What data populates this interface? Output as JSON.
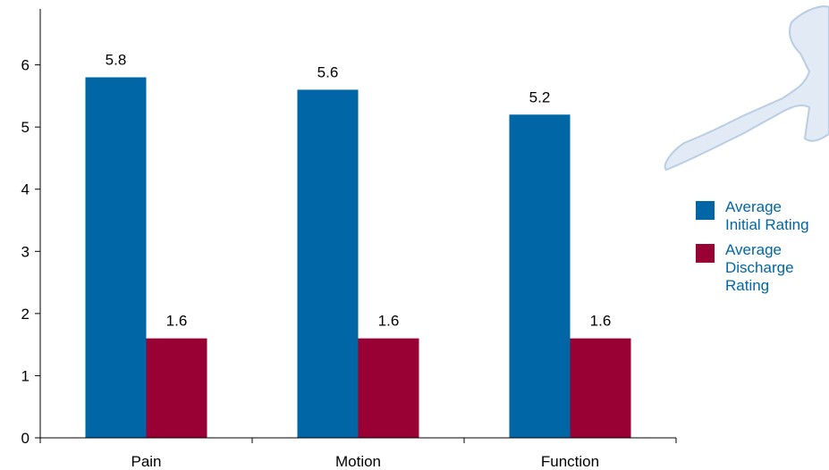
{
  "chart_data": {
    "type": "bar",
    "categories": [
      "Pain",
      "Motion",
      "Function"
    ],
    "series": [
      {
        "name": "Average\nInitial Rating",
        "color": "#0066a6",
        "values": [
          5.8,
          5.6,
          5.2
        ]
      },
      {
        "name": "Average\nDischarge\nRating",
        "color": "#990033",
        "values": [
          1.6,
          1.6,
          1.6
        ]
      }
    ],
    "data_labels": [
      [
        "5.8",
        "5.6",
        "5.2"
      ],
      [
        "1.6",
        "1.6",
        "1.6"
      ]
    ],
    "y_ticks": [
      "0",
      "1",
      "2",
      "3",
      "4",
      "5",
      "6"
    ],
    "ylim": [
      0,
      6.9
    ],
    "grid": false,
    "legend_position": "right",
    "legend_text_color": "#0066a6",
    "decoration": "light-blue-arm-outline-icon"
  }
}
